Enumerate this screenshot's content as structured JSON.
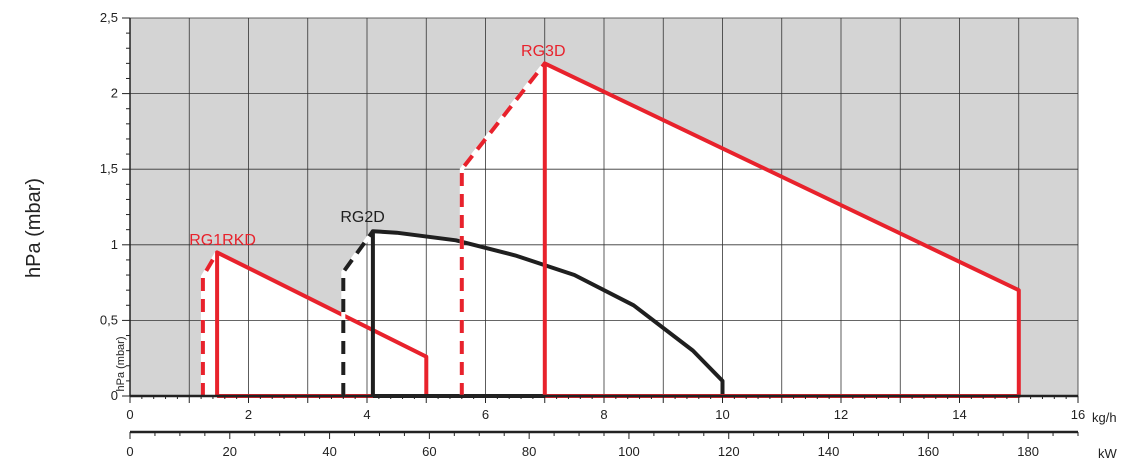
{
  "chart_data": {
    "type": "line",
    "ylabel": "hPa (mbar)",
    "ylabel_small": "hPa (mbar)",
    "xlabel": "kg/h",
    "x2label": "kW",
    "xlim": [
      0,
      16
    ],
    "ylim": [
      0,
      2.5
    ],
    "x2lim": [
      0,
      190
    ],
    "x_ticks": [
      0,
      2,
      4,
      6,
      8,
      10,
      12,
      14,
      16
    ],
    "x_tick_labels": [
      "0",
      "2",
      "4",
      "6",
      "8",
      "10",
      "12",
      "14",
      "16"
    ],
    "y_ticks": [
      0,
      0.5,
      1,
      1.5,
      2,
      2.5
    ],
    "y_tick_labels": [
      "0",
      "0,5",
      "1",
      "1,5",
      "2",
      "2,5"
    ],
    "x2_ticks": [
      0,
      20,
      40,
      60,
      80,
      100,
      120,
      140,
      160,
      180
    ],
    "x2_tick_labels": [
      "0",
      "20",
      "40",
      "60",
      "80",
      "100",
      "120",
      "140",
      "160",
      "180"
    ],
    "grid": true,
    "colors": {
      "background_gray": "#d4d4d4",
      "red": "#e8222c",
      "black": "#1f1f1f",
      "grid": "#333333"
    },
    "series": [
      {
        "name": "RG1RKD",
        "color": "#e8222c",
        "dashed_start": [
          [
            1.23,
            0
          ],
          [
            1.23,
            0.79
          ],
          [
            1.47,
            0.95
          ]
        ],
        "solid_outline": [
          [
            1.47,
            0
          ],
          [
            1.47,
            0.95
          ],
          [
            5.0,
            0.26
          ],
          [
            5.0,
            0
          ],
          [
            1.47,
            0
          ]
        ]
      },
      {
        "name": "RG2D",
        "color": "#1f1f1f",
        "dashed_start": [
          [
            3.6,
            0
          ],
          [
            3.6,
            0.82
          ],
          [
            4.1,
            1.09
          ]
        ],
        "solid_outline": [
          [
            4.1,
            0
          ],
          [
            4.1,
            1.09
          ],
          [
            4.5,
            1.08
          ],
          [
            5.5,
            1.03
          ],
          [
            6.5,
            0.93
          ],
          [
            7.5,
            0.8
          ],
          [
            8.5,
            0.6
          ],
          [
            9.5,
            0.3
          ],
          [
            10.0,
            0.1
          ],
          [
            10.0,
            0
          ],
          [
            4.1,
            0
          ]
        ]
      },
      {
        "name": "RG3D",
        "color": "#e8222c",
        "dashed_start": [
          [
            5.6,
            0
          ],
          [
            5.6,
            1.5
          ],
          [
            7.0,
            2.2
          ]
        ],
        "solid_outline": [
          [
            7.0,
            0
          ],
          [
            7.0,
            2.2
          ],
          [
            15.0,
            0.7
          ],
          [
            15.0,
            0
          ],
          [
            7.0,
            0
          ]
        ]
      }
    ],
    "annotations": [
      {
        "text": "RG1RKD",
        "x": 1.0,
        "y": 1.0,
        "color": "#e8222c"
      },
      {
        "text": "RG2D",
        "x": 3.55,
        "y": 1.15,
        "color": "#1f1f1f"
      },
      {
        "text": "RG3D",
        "x": 6.6,
        "y": 2.25,
        "color": "#e8222c"
      }
    ]
  }
}
